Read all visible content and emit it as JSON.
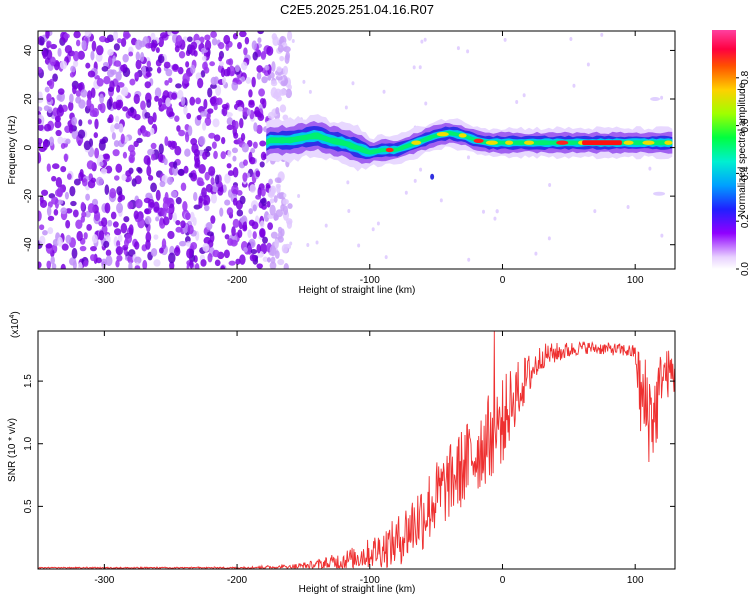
{
  "figure_title": "C2E5.2025.251.04.16.R07",
  "chart_data": [
    {
      "type": "heatmap",
      "title": "C2E5.2025.251.04.16.R07",
      "xlabel": "Height of straight line (km)",
      "ylabel": "Frequency (Hz)",
      "xlim": [
        -350,
        130
      ],
      "ylim": [
        -50,
        48
      ],
      "xticks": [
        -300,
        -200,
        -100,
        0,
        100
      ],
      "yticks": [
        -40,
        -20,
        0,
        20,
        40
      ],
      "colorbar": {
        "label": "Normalized spectral amplitude",
        "range": [
          0,
          1
        ],
        "ticks": [
          0.0,
          0.2,
          0.4,
          0.6,
          0.8
        ],
        "colormap": [
          "#ffffff",
          "#d8b8f0",
          "#8800e0",
          "#2020ff",
          "#00c8ff",
          "#00ff70",
          "#f0f000",
          "#ff9000",
          "#ff0000",
          "#ff0090",
          "#ff3090"
        ]
      },
      "noise_region": {
        "x_range": [
          -350,
          -175
        ],
        "freq_range": [
          -50,
          48
        ]
      },
      "ridge": [
        {
          "x": -175,
          "f": 3
        },
        {
          "x": -160,
          "f": 3
        },
        {
          "x": -150,
          "f": 4
        },
        {
          "x": -140,
          "f": 5
        },
        {
          "x": -130,
          "f": 3
        },
        {
          "x": -120,
          "f": 2
        },
        {
          "x": -110,
          "f": 0
        },
        {
          "x": -100,
          "f": -2
        },
        {
          "x": -90,
          "f": -1
        },
        {
          "x": -80,
          "f": -1
        },
        {
          "x": -70,
          "f": 1
        },
        {
          "x": -60,
          "f": 3
        },
        {
          "x": -50,
          "f": 5
        },
        {
          "x": -40,
          "f": 6
        },
        {
          "x": -30,
          "f": 5
        },
        {
          "x": -20,
          "f": 3
        },
        {
          "x": -10,
          "f": 2
        },
        {
          "x": 0,
          "f": 2
        },
        {
          "x": 20,
          "f": 2
        },
        {
          "x": 60,
          "f": 2
        },
        {
          "x": 100,
          "f": 2
        },
        {
          "x": 130,
          "f": 2
        }
      ]
    },
    {
      "type": "line",
      "xlabel": "Height of straight line (km)",
      "ylabel": "SNR (10 * v/v)",
      "exponent_label": "(x10",
      "exponent_power": "4",
      "exponent_close": ")",
      "xlim": [
        -350,
        130
      ],
      "ylim": [
        0,
        1.9
      ],
      "xticks": [
        -300,
        -200,
        -100,
        0,
        100
      ],
      "yticks": [
        0.5,
        1.0,
        1.5
      ],
      "ytick_labels": [
        "0.5",
        "1.0",
        "1.5"
      ],
      "color": "#ee3030",
      "envelope": [
        {
          "x": -350,
          "mean": 0.01,
          "amp": 0.005
        },
        {
          "x": -200,
          "mean": 0.01,
          "amp": 0.008
        },
        {
          "x": -160,
          "mean": 0.02,
          "amp": 0.02
        },
        {
          "x": -140,
          "mean": 0.04,
          "amp": 0.04
        },
        {
          "x": -120,
          "mean": 0.08,
          "amp": 0.08
        },
        {
          "x": -100,
          "mean": 0.15,
          "amp": 0.12
        },
        {
          "x": -80,
          "mean": 0.25,
          "amp": 0.2
        },
        {
          "x": -60,
          "mean": 0.5,
          "amp": 0.3
        },
        {
          "x": -40,
          "mean": 0.75,
          "amp": 0.3
        },
        {
          "x": -20,
          "mean": 1.0,
          "amp": 0.35
        },
        {
          "x": 0,
          "mean": 1.25,
          "amp": 0.35
        },
        {
          "x": 10,
          "mean": 1.45,
          "amp": 0.25
        },
        {
          "x": 30,
          "mean": 1.72,
          "amp": 0.1
        },
        {
          "x": 60,
          "mean": 1.78,
          "amp": 0.05
        },
        {
          "x": 90,
          "mean": 1.76,
          "amp": 0.05
        },
        {
          "x": 100,
          "mean": 1.74,
          "amp": 0.06
        },
        {
          "x": 105,
          "mean": 1.4,
          "amp": 0.45
        },
        {
          "x": 115,
          "mean": 1.3,
          "amp": 0.4
        },
        {
          "x": 120,
          "mean": 1.6,
          "amp": 0.2
        },
        {
          "x": 130,
          "mean": 1.6,
          "amp": 0.2
        }
      ]
    }
  ]
}
